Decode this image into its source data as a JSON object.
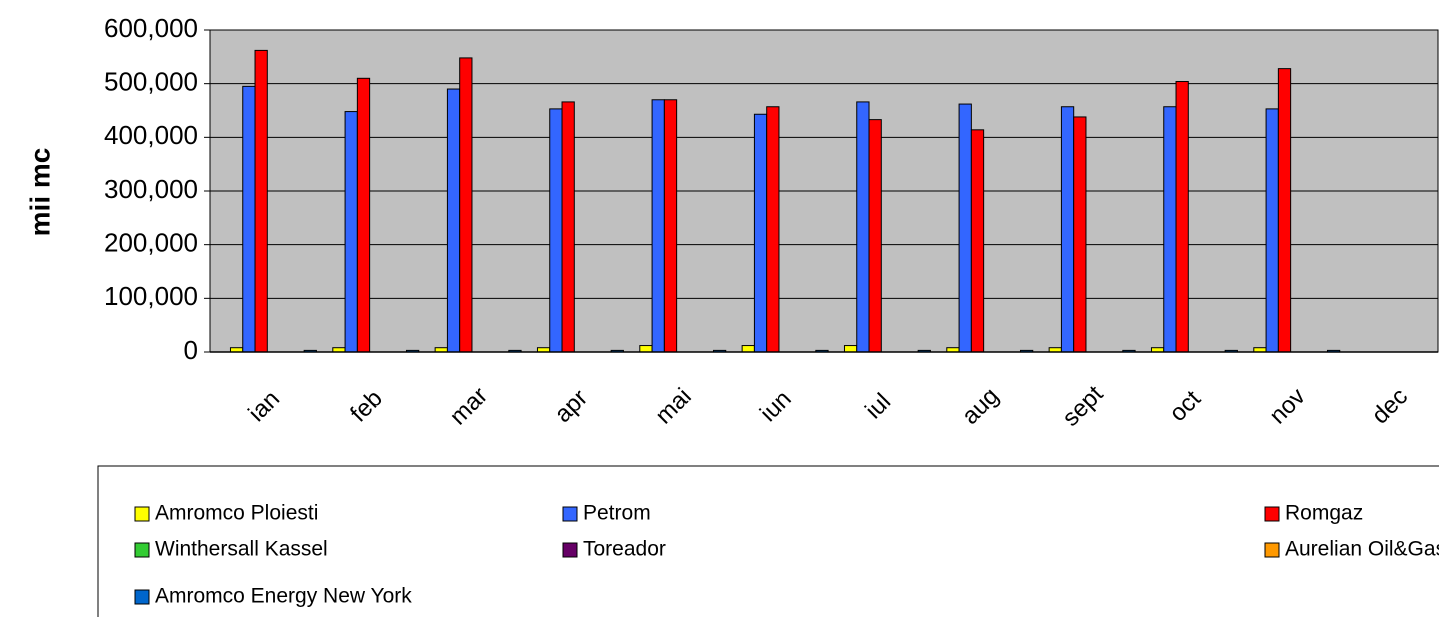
{
  "chart_data": {
    "type": "bar",
    "y_label": "mii mc",
    "categories": [
      "ian",
      "feb",
      "mar",
      "apr",
      "mai",
      "iun",
      "iul",
      "aug",
      "sept",
      "oct",
      "nov",
      "dec"
    ],
    "series": [
      {
        "name": "Amromco Ploiesti",
        "color": "#ffff00",
        "values": [
          8000,
          8000,
          8000,
          8000,
          12000,
          12000,
          12000,
          8000,
          8000,
          8000,
          8000,
          null
        ]
      },
      {
        "name": "Petrom",
        "color": "#3366ff",
        "values": [
          495000,
          448000,
          490000,
          453000,
          470000,
          443000,
          466000,
          462000,
          457000,
          457000,
          453000,
          null
        ]
      },
      {
        "name": "Romgaz",
        "color": "#ff0000",
        "values": [
          562000,
          510000,
          548000,
          466000,
          470000,
          457000,
          433000,
          414000,
          438000,
          504000,
          528000,
          null
        ]
      },
      {
        "name": "Winthersall Kassel",
        "color": "#33cc33",
        "values": [
          0,
          0,
          0,
          0,
          0,
          0,
          0,
          0,
          0,
          0,
          0,
          null
        ]
      },
      {
        "name": "Toreador",
        "color": "#660066",
        "values": [
          0,
          0,
          0,
          0,
          0,
          0,
          0,
          0,
          0,
          0,
          0,
          null
        ]
      },
      {
        "name": "Aurelian Oil&Gas",
        "color": "#ff9900",
        "values": [
          0,
          0,
          0,
          0,
          0,
          0,
          0,
          0,
          0,
          0,
          0,
          null
        ]
      },
      {
        "name": "Amromco Energy New York",
        "color": "#0066cc",
        "values": [
          3000,
          3000,
          3000,
          3000,
          3000,
          3000,
          3000,
          3000,
          3000,
          3000,
          3000,
          null
        ]
      }
    ],
    "ylim": [
      0,
      600000
    ],
    "yticks": [
      0,
      {
        "value": 100000,
        "label": "100,000"
      },
      {
        "value": 200000,
        "label": "200,000"
      },
      {
        "value": 300000,
        "label": "300,000"
      },
      {
        "value": 400000,
        "label": "400,000"
      },
      {
        "value": 500000,
        "label": "500,000"
      },
      {
        "value": 600000,
        "label": "600,000"
      }
    ],
    "grid": true,
    "legend": "bottom",
    "plot_background": "#c0c0c0"
  }
}
